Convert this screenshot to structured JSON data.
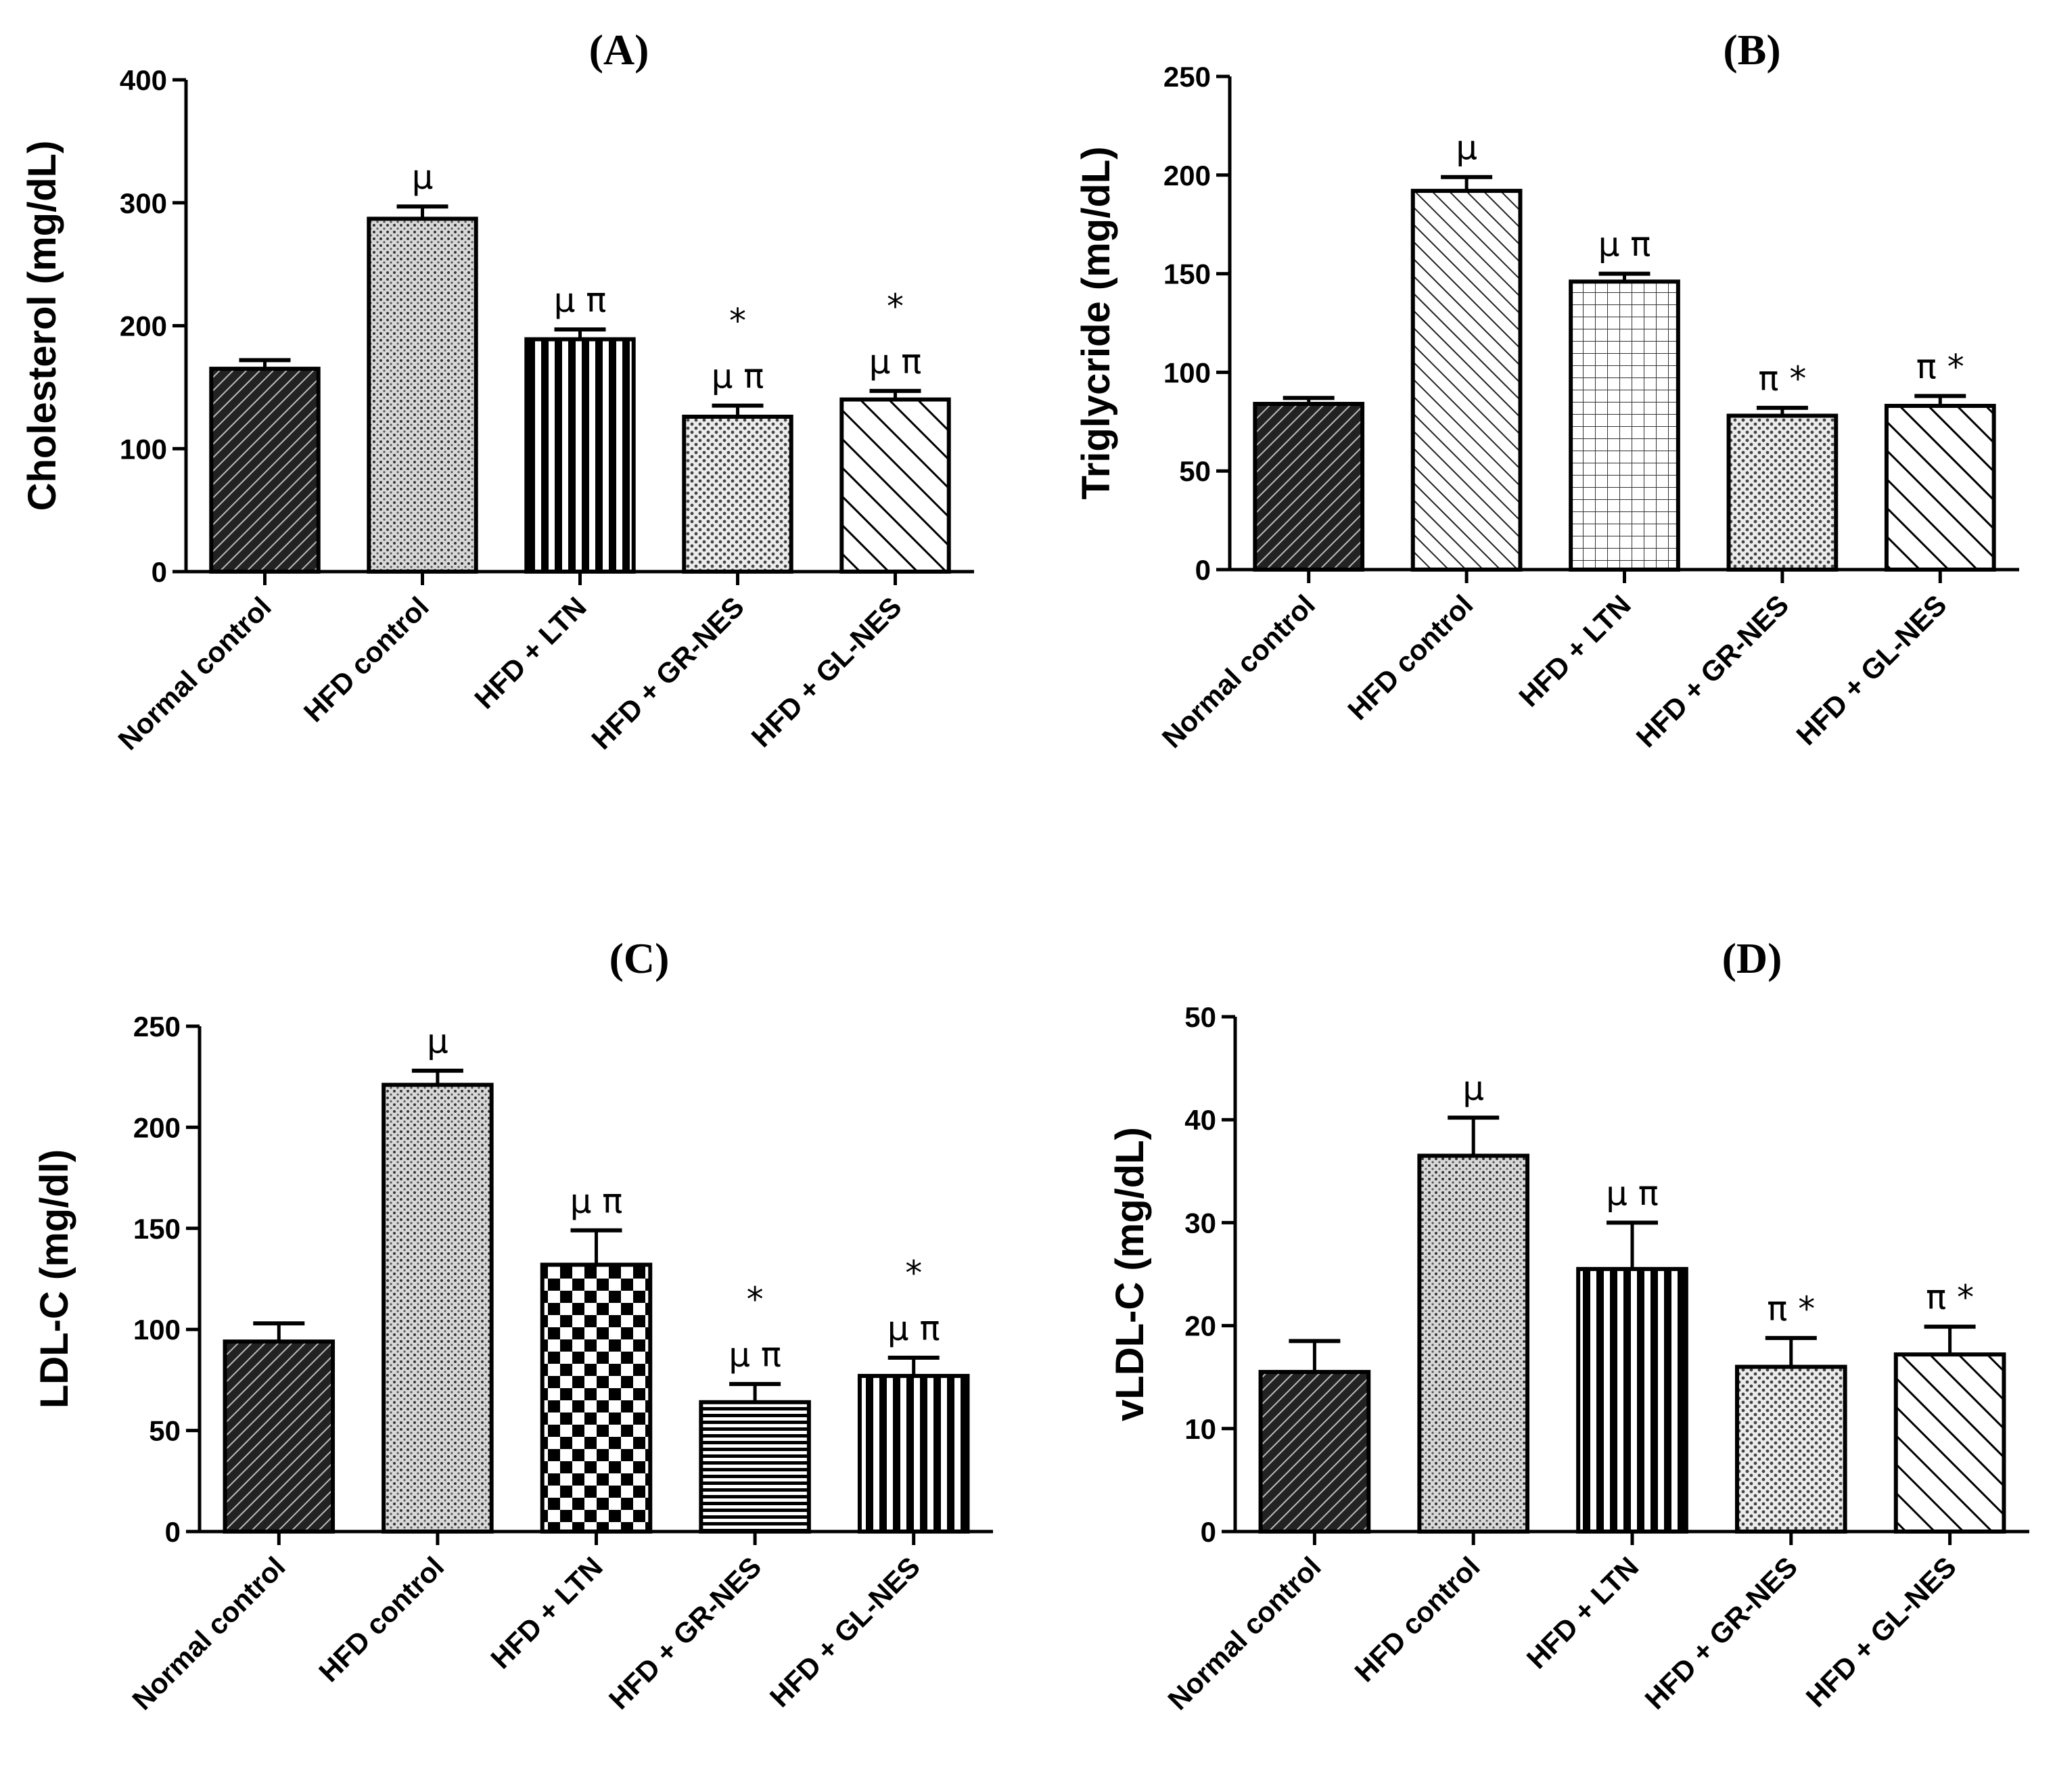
{
  "chart_data": [
    {
      "type": "bar",
      "title": "(A)",
      "xlabel": "",
      "ylabel": "Cholesterol (mg/dL)",
      "ylim": [
        0,
        400
      ],
      "yticks": [
        0,
        100,
        200,
        300,
        400
      ],
      "categories": [
        "Normal control",
        "HFD control",
        "HFD + LTN",
        "HFD + GR-NES",
        "HFD + GL-NES"
      ],
      "values": [
        165,
        287,
        189,
        126,
        140
      ],
      "errors": [
        7,
        10,
        8,
        9,
        7
      ],
      "annotations": [
        [],
        [
          "μ"
        ],
        [
          "μ π"
        ],
        [
          "*",
          "μ π"
        ],
        [
          "*",
          "μ π"
        ]
      ]
    },
    {
      "type": "bar",
      "title": "(B)",
      "xlabel": "",
      "ylabel": "Triglycride (mg/dL)",
      "ylim": [
        0,
        250
      ],
      "yticks": [
        0,
        50,
        100,
        150,
        200,
        250
      ],
      "categories": [
        "Normal control",
        "HFD control",
        "HFD + LTN",
        "HFD + GR-NES",
        "HFD + GL-NES"
      ],
      "values": [
        84,
        192,
        146,
        78,
        83
      ],
      "errors": [
        3,
        7,
        4,
        4,
        5
      ],
      "annotations": [
        [],
        [
          "μ"
        ],
        [
          "μ π"
        ],
        [
          "π *"
        ],
        [
          "π *"
        ]
      ]
    },
    {
      "type": "bar",
      "title": "(C)",
      "xlabel": "",
      "ylabel": "LDL-C (mg/dl)",
      "ylim": [
        0,
        250
      ],
      "yticks": [
        0,
        50,
        100,
        150,
        200,
        250
      ],
      "categories": [
        "Normal control",
        "HFD control",
        "HFD + LTN",
        "HFD + GR-NES",
        "HFD + GL-NES"
      ],
      "values": [
        94,
        221,
        132,
        64,
        77
      ],
      "errors": [
        9,
        7,
        17,
        9,
        9
      ],
      "annotations": [
        [],
        [
          "μ"
        ],
        [
          "μ π"
        ],
        [
          "*",
          "μ π"
        ],
        [
          "*",
          "μ π"
        ]
      ]
    },
    {
      "type": "bar",
      "title": "(D)",
      "xlabel": "",
      "ylabel": "vLDL-C (mg/dL)",
      "ylim": [
        0,
        50
      ],
      "yticks": [
        0,
        10,
        20,
        30,
        40,
        50
      ],
      "categories": [
        "Normal control",
        "HFD control",
        "HFD + LTN",
        "HFD + GR-NES",
        "HFD + GL-NES"
      ],
      "values": [
        15.5,
        36.5,
        25.5,
        16,
        17.2
      ],
      "errors": [
        3,
        3.7,
        4.5,
        2.8,
        2.7
      ],
      "annotations": [
        [],
        [
          "μ"
        ],
        [
          "μ π"
        ],
        [
          "π *"
        ],
        [
          "π *"
        ]
      ]
    }
  ]
}
